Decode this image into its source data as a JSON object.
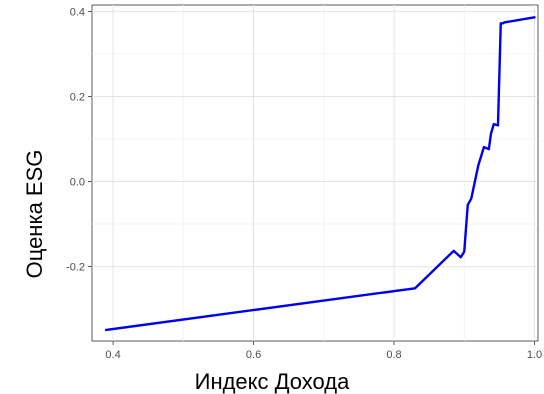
{
  "chart_data": {
    "type": "line",
    "xlabel": "Индекс Дохода",
    "ylabel": "Оценка ESG",
    "xlim": [
      0.37,
      1.005
    ],
    "ylim": [
      -0.375,
      0.415
    ],
    "x_ticks": [
      0.4,
      0.6,
      0.8,
      1.0
    ],
    "x_tick_labels": [
      "0.4",
      "0.6",
      "0.8",
      "1.0"
    ],
    "y_ticks": [
      -0.2,
      0.0,
      0.2,
      0.4
    ],
    "y_tick_labels": [
      "-0.2",
      "0.0",
      "0.2",
      "0.4"
    ],
    "grid": true,
    "line_color": "#0000ee",
    "series": [
      {
        "x": [
          0.39,
          0.83,
          0.885,
          0.895,
          0.9,
          0.905,
          0.91,
          0.92,
          0.928,
          0.935,
          0.938,
          0.942,
          0.948,
          0.952,
          0.955,
          0.957,
          1.0
        ],
        "y": [
          -0.349,
          -0.251,
          -0.163,
          -0.178,
          -0.165,
          -0.055,
          -0.04,
          0.038,
          0.081,
          0.076,
          0.112,
          0.135,
          0.132,
          0.372,
          0.372,
          0.374,
          0.386
        ]
      }
    ]
  }
}
